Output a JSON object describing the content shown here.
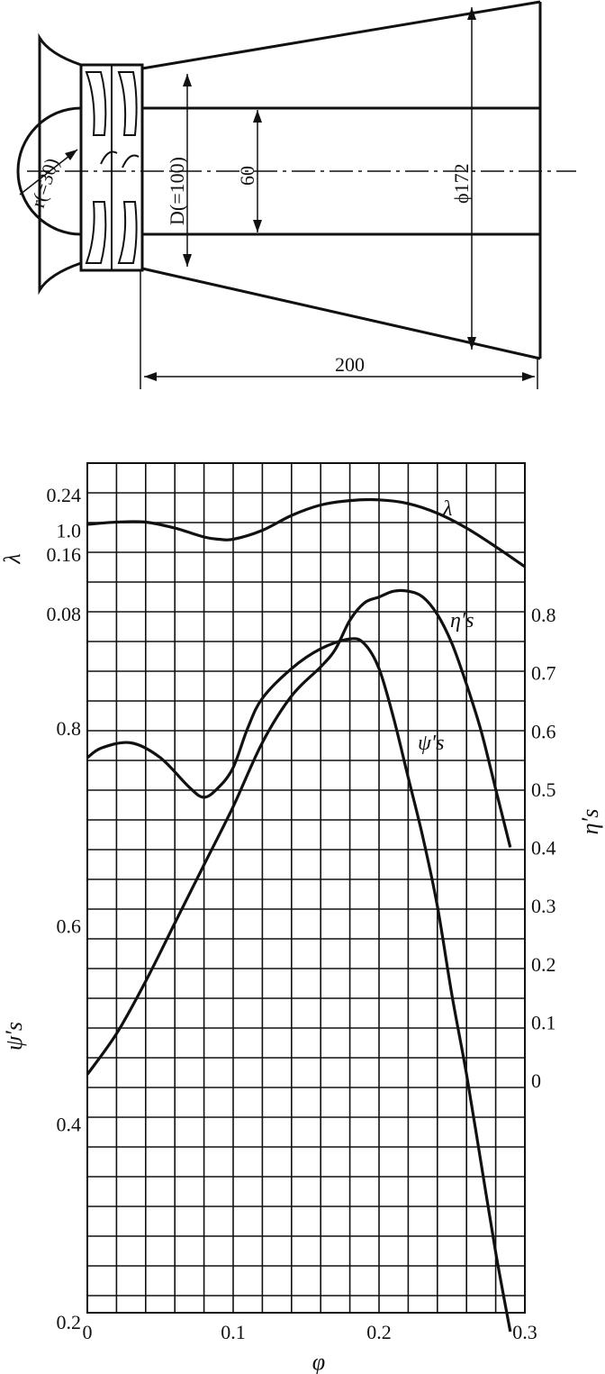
{
  "colors": {
    "ink": "#111111",
    "background": "#ffffff"
  },
  "drawing": {
    "dim_radius": "r(=30)",
    "dim_diameter": "D(=100)",
    "dim_hub": "60",
    "dim_outlet": "ϕ172",
    "dim_length": "200"
  },
  "chart_data": {
    "type": "line",
    "grid": true,
    "x": {
      "label": "φ",
      "range": [
        0,
        0.3
      ],
      "ticks": [
        0,
        0.1,
        0.2,
        0.3
      ],
      "tick_labels": [
        "0",
        "0.1",
        "0.2",
        "0.3"
      ]
    },
    "axes": {
      "lambda": {
        "label": "λ",
        "side": "left",
        "ticks": [
          0.08,
          0.16,
          0.24
        ],
        "tick_labels": [
          "0.08",
          "0.16",
          "0.24"
        ]
      },
      "psi": {
        "label": "ψ′s",
        "side": "left",
        "ticks": [
          0.2,
          0.4,
          0.6,
          0.8,
          1.0
        ],
        "tick_labels": [
          "0.2",
          "0.4",
          "0.6",
          "0.8",
          "1.0"
        ]
      },
      "eta": {
        "label": "η′s",
        "side": "right",
        "ticks": [
          0,
          0.1,
          0.2,
          0.3,
          0.4,
          0.5,
          0.6,
          0.7,
          0.8
        ],
        "tick_labels": [
          "0",
          "0.1",
          "0.2",
          "0.3",
          "0.4",
          "0.5",
          "0.6",
          "0.7",
          "0.8"
        ]
      }
    },
    "series": [
      {
        "name": "λ",
        "axis": "lambda",
        "x": [
          0,
          0.02,
          0.04,
          0.06,
          0.08,
          0.09,
          0.1,
          0.12,
          0.14,
          0.16,
          0.18,
          0.2,
          0.22,
          0.24,
          0.26,
          0.28,
          0.3
        ],
        "y": [
          0.2,
          0.203,
          0.203,
          0.195,
          0.183,
          0.18,
          0.18,
          0.192,
          0.212,
          0.226,
          0.232,
          0.233,
          0.228,
          0.215,
          0.195,
          0.17,
          0.143
        ]
      },
      {
        "name": "η′s",
        "axis": "eta",
        "x": [
          0,
          0.02,
          0.04,
          0.06,
          0.08,
          0.1,
          0.12,
          0.14,
          0.16,
          0.17,
          0.18,
          0.19,
          0.2,
          0.21,
          0.22,
          0.23,
          0.24,
          0.25,
          0.26,
          0.27,
          0.28,
          0.29
        ],
        "y": [
          0.01,
          0.08,
          0.17,
          0.27,
          0.37,
          0.47,
          0.58,
          0.66,
          0.71,
          0.74,
          0.79,
          0.82,
          0.83,
          0.84,
          0.84,
          0.83,
          0.8,
          0.75,
          0.68,
          0.6,
          0.5,
          0.4
        ]
      },
      {
        "name": "ψ′s",
        "axis": "psi",
        "x": [
          0,
          0.01,
          0.03,
          0.05,
          0.07,
          0.08,
          0.09,
          0.1,
          0.11,
          0.12,
          0.14,
          0.16,
          0.18,
          0.19,
          0.2,
          0.21,
          0.22,
          0.23,
          0.24,
          0.25,
          0.26,
          0.27,
          0.28,
          0.29
        ],
        "y": [
          0.77,
          0.78,
          0.785,
          0.77,
          0.74,
          0.73,
          0.74,
          0.76,
          0.8,
          0.83,
          0.86,
          0.88,
          0.89,
          0.885,
          0.86,
          0.81,
          0.75,
          0.69,
          0.62,
          0.53,
          0.45,
          0.36,
          0.27,
          0.19
        ]
      }
    ]
  }
}
